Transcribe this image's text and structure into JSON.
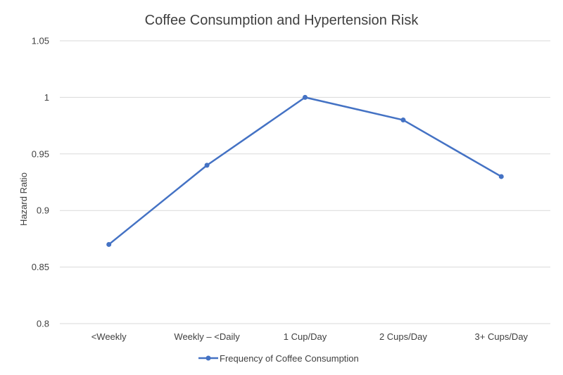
{
  "chart_data": {
    "type": "line",
    "title": "Coffee Consumption and Hypertension Risk",
    "xlabel": "",
    "ylabel": "Hazard Ratio",
    "categories": [
      "<Weekly",
      "Weekly – <Daily",
      "1 Cup/Day",
      "2 Cups/Day",
      "3+ Cups/Day"
    ],
    "series": [
      {
        "name": "Frequency of Coffee Consumption",
        "values": [
          0.87,
          0.94,
          1.0,
          0.98,
          0.93
        ]
      }
    ],
    "ylim": [
      0.8,
      1.05
    ],
    "yticks": [
      "0.8",
      "0.85",
      "0.9",
      "0.95",
      "1",
      "1.05"
    ],
    "grid": true,
    "legend": "bottom",
    "colors": {
      "series": "#4472C4",
      "grid": "#d9d9d9",
      "text": "#404040"
    }
  }
}
